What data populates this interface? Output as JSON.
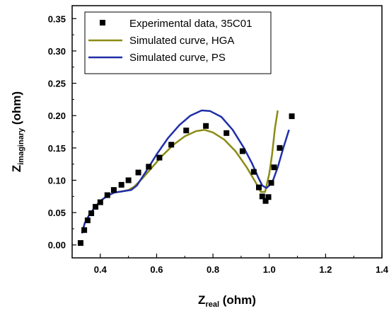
{
  "chart_data": {
    "type": "scatter",
    "title": "",
    "xlabel": {
      "main": "Z",
      "sub": "real",
      "unit": " (ohm)"
    },
    "ylabel": {
      "main": "Z",
      "sub": "imaginary",
      "unit": " (ohm)"
    },
    "xlim": [
      0.3,
      1.4
    ],
    "ylim": [
      -0.02,
      0.37
    ],
    "x_ticks": [
      "0.4",
      "0.6",
      "0.8",
      "1.0",
      "1.2",
      "1.4"
    ],
    "y_ticks": [
      "0.00",
      "0.05",
      "0.10",
      "0.15",
      "0.20",
      "0.25",
      "0.30",
      "0.35"
    ],
    "grid": false,
    "legend_position": "top-left",
    "series": [
      {
        "name": "Experimental data, 35C01",
        "kind": "markers",
        "color": "#000000",
        "points": [
          [
            0.33,
            0.003
          ],
          [
            0.343,
            0.023
          ],
          [
            0.355,
            0.038
          ],
          [
            0.368,
            0.049
          ],
          [
            0.383,
            0.059
          ],
          [
            0.4,
            0.066
          ],
          [
            0.425,
            0.077
          ],
          [
            0.448,
            0.085
          ],
          [
            0.475,
            0.093
          ],
          [
            0.5,
            0.1
          ],
          [
            0.535,
            0.112
          ],
          [
            0.572,
            0.121
          ],
          [
            0.61,
            0.135
          ],
          [
            0.652,
            0.155
          ],
          [
            0.705,
            0.177
          ],
          [
            0.775,
            0.184
          ],
          [
            0.848,
            0.173
          ],
          [
            0.905,
            0.145
          ],
          [
            0.945,
            0.113
          ],
          [
            0.963,
            0.089
          ],
          [
            0.975,
            0.075
          ],
          [
            0.987,
            0.068
          ],
          [
            0.997,
            0.074
          ],
          [
            1.007,
            0.096
          ],
          [
            1.017,
            0.12
          ],
          [
            1.037,
            0.15
          ],
          [
            1.08,
            0.199
          ]
        ]
      },
      {
        "name": "Simulated curve, HGA",
        "kind": "line",
        "color": "#8b8b14",
        "points": [
          [
            0.335,
            0.018
          ],
          [
            0.345,
            0.034
          ],
          [
            0.36,
            0.046
          ],
          [
            0.38,
            0.058
          ],
          [
            0.4,
            0.068
          ],
          [
            0.425,
            0.076
          ],
          [
            0.45,
            0.081
          ],
          [
            0.48,
            0.083
          ],
          [
            0.5,
            0.085
          ],
          [
            0.52,
            0.09
          ],
          [
            0.55,
            0.103
          ],
          [
            0.58,
            0.118
          ],
          [
            0.62,
            0.138
          ],
          [
            0.66,
            0.155
          ],
          [
            0.7,
            0.168
          ],
          [
            0.74,
            0.176
          ],
          [
            0.77,
            0.178
          ],
          [
            0.8,
            0.174
          ],
          [
            0.84,
            0.163
          ],
          [
            0.88,
            0.145
          ],
          [
            0.92,
            0.12
          ],
          [
            0.95,
            0.098
          ],
          [
            0.97,
            0.082
          ],
          [
            0.985,
            0.082
          ],
          [
            1.0,
            0.11
          ],
          [
            1.01,
            0.14
          ],
          [
            1.02,
            0.18
          ],
          [
            1.03,
            0.208
          ]
        ]
      },
      {
        "name": "Simulated curve, PS",
        "kind": "line",
        "color": "#1f2fa8",
        "points": [
          [
            0.335,
            0.018
          ],
          [
            0.345,
            0.034
          ],
          [
            0.36,
            0.046
          ],
          [
            0.38,
            0.058
          ],
          [
            0.4,
            0.068
          ],
          [
            0.425,
            0.076
          ],
          [
            0.45,
            0.081
          ],
          [
            0.48,
            0.083
          ],
          [
            0.51,
            0.085
          ],
          [
            0.53,
            0.092
          ],
          [
            0.56,
            0.112
          ],
          [
            0.6,
            0.14
          ],
          [
            0.64,
            0.165
          ],
          [
            0.68,
            0.185
          ],
          [
            0.72,
            0.2
          ],
          [
            0.76,
            0.208
          ],
          [
            0.79,
            0.207
          ],
          [
            0.83,
            0.198
          ],
          [
            0.87,
            0.178
          ],
          [
            0.91,
            0.15
          ],
          [
            0.94,
            0.125
          ],
          [
            0.96,
            0.105
          ],
          [
            0.975,
            0.092
          ],
          [
            0.99,
            0.088
          ],
          [
            1.01,
            0.096
          ],
          [
            1.03,
            0.12
          ],
          [
            1.05,
            0.15
          ],
          [
            1.07,
            0.178
          ]
        ]
      }
    ]
  }
}
